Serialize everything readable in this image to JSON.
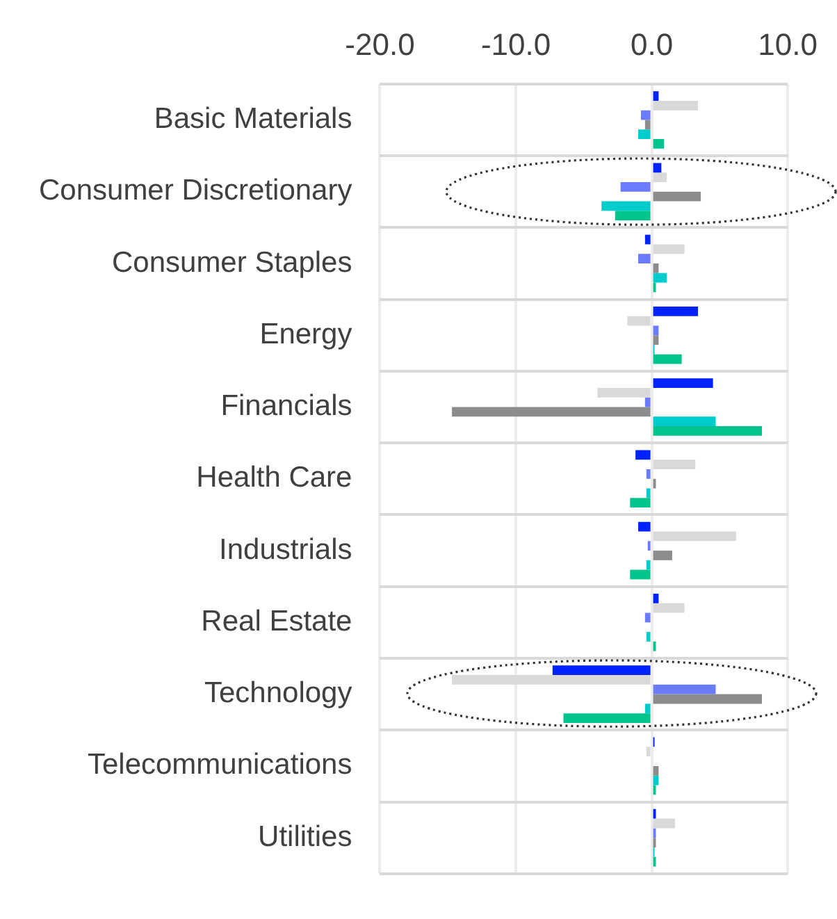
{
  "chart_data": {
    "type": "bar",
    "orientation": "horizontal",
    "categories": [
      "Basic Materials",
      "Consumer Discretionary",
      "Consumer Staples",
      "Energy",
      "Financials",
      "Health Care",
      "Industrials",
      "Real Estate",
      "Technology",
      "Telecommunications",
      "Utilities"
    ],
    "series": [
      {
        "color": "#0022ff",
        "values": [
          0.5,
          0.7,
          -0.5,
          3.4,
          4.5,
          -1.2,
          -1.0,
          0.5,
          -7.3,
          0.2,
          0.3
        ]
      },
      {
        "color": "#d9d9d9",
        "values": [
          3.4,
          1.1,
          2.4,
          -1.8,
          -4.0,
          3.2,
          6.2,
          2.4,
          -14.7,
          -0.4,
          1.7
        ]
      },
      {
        "color": "#6b7bff",
        "values": [
          -0.8,
          -2.3,
          -1.0,
          0.5,
          -0.5,
          -0.4,
          -0.3,
          -0.5,
          4.7,
          0.0,
          0.3
        ]
      },
      {
        "color": "#8c8c8c",
        "values": [
          -0.5,
          3.6,
          0.5,
          0.5,
          -14.7,
          0.3,
          1.5,
          0.0,
          8.1,
          0.5,
          0.3
        ]
      },
      {
        "color": "#00cccc",
        "values": [
          -1.0,
          -3.7,
          1.1,
          0.2,
          4.7,
          -0.4,
          -0.4,
          -0.4,
          -0.5,
          0.5,
          0.2
        ]
      },
      {
        "color": "#00c48c",
        "values": [
          0.9,
          -2.7,
          0.3,
          2.2,
          8.1,
          -1.6,
          -1.6,
          0.3,
          -6.5,
          0.3,
          0.3
        ]
      }
    ],
    "xlim": [
      -20,
      10
    ],
    "xticks": [
      {
        "value": -20,
        "label": "-20.0"
      },
      {
        "value": -10,
        "label": "-10.0"
      },
      {
        "value": 0,
        "label": "0.0"
      },
      {
        "value": 10,
        "label": "10.0"
      }
    ],
    "grid": true,
    "legend": false
  }
}
